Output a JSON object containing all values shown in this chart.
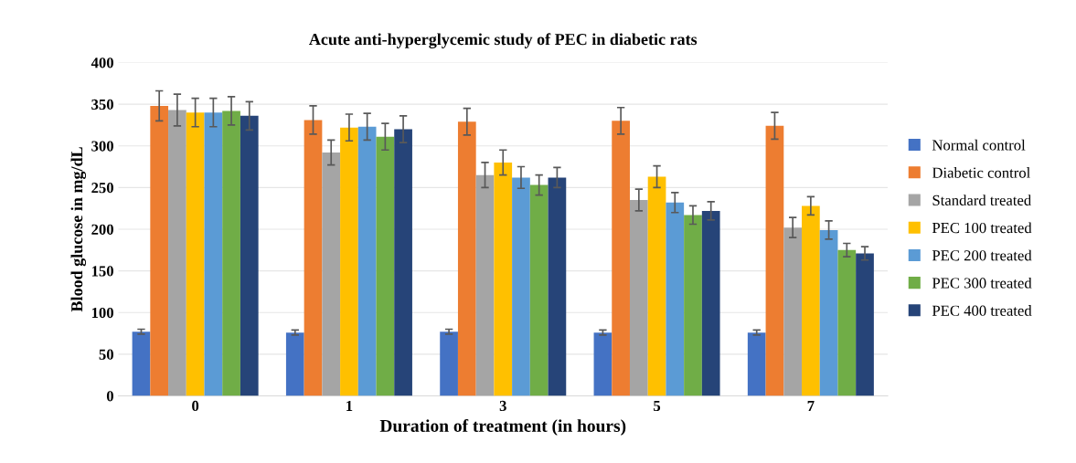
{
  "chart_data": {
    "type": "bar",
    "title": "Acute anti-hyperglycemic study of PEC in diabetic rats",
    "xlabel": "Duration of treatment (in hours)",
    "ylabel": "Blood glucose in mg/dL",
    "categories": [
      "0",
      "1",
      "3",
      "5",
      "7"
    ],
    "ylim": [
      0,
      400
    ],
    "yticks": [
      0,
      50,
      100,
      150,
      200,
      250,
      300,
      350,
      400
    ],
    "grid": "y",
    "legend": "right",
    "series": [
      {
        "name": "Normal control",
        "color": "#4472c4",
        "values": [
          77,
          76,
          77,
          76,
          76
        ],
        "errors": [
          3,
          3,
          3,
          3,
          3
        ]
      },
      {
        "name": "Diabetic control",
        "color": "#ed7d31",
        "values": [
          348,
          331,
          329,
          330,
          324
        ],
        "errors": [
          18,
          17,
          16,
          16,
          16
        ]
      },
      {
        "name": "Standard treated",
        "color": "#a5a5a5",
        "values": [
          343,
          292,
          265,
          235,
          202
        ],
        "errors": [
          19,
          15,
          15,
          13,
          12
        ]
      },
      {
        "name": "PEC 100 treated",
        "color": "#ffc000",
        "values": [
          340,
          322,
          280,
          263,
          228
        ],
        "errors": [
          17,
          16,
          15,
          13,
          11
        ]
      },
      {
        "name": "PEC 200 treated",
        "color": "#5b9bd5",
        "values": [
          340,
          323,
          262,
          232,
          199
        ],
        "errors": [
          17,
          16,
          13,
          12,
          11
        ]
      },
      {
        "name": "PEC 300 treated",
        "color": "#70ad47",
        "values": [
          342,
          311,
          253,
          217,
          175
        ],
        "errors": [
          17,
          16,
          12,
          11,
          8
        ]
      },
      {
        "name": "PEC 400 treated",
        "color": "#264478",
        "values": [
          336,
          320,
          262,
          222,
          171
        ],
        "errors": [
          17,
          16,
          12,
          11,
          8
        ]
      }
    ]
  }
}
